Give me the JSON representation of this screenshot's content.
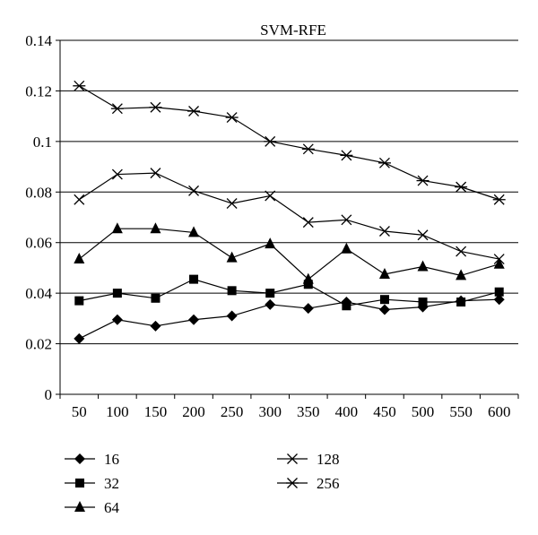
{
  "chart_data": {
    "type": "line",
    "title": "SVM-RFE",
    "xlabel": "",
    "ylabel": "",
    "categories": [
      "50",
      "100",
      "150",
      "200",
      "250",
      "300",
      "350",
      "400",
      "450",
      "500",
      "550",
      "600"
    ],
    "yticks": [
      "0",
      "0.02",
      "0.04",
      "0.06",
      "0.08",
      "0.1",
      "0.12",
      "0.14"
    ],
    "ylim": [
      0,
      0.14
    ],
    "grid": "horizontal",
    "legend_position": "bottom",
    "series": [
      {
        "name": "16",
        "marker": "diamond",
        "values": [
          0.022,
          0.0295,
          0.027,
          0.0295,
          0.031,
          0.0355,
          0.034,
          0.0365,
          0.0335,
          0.0345,
          0.037,
          0.0375
        ]
      },
      {
        "name": "32",
        "marker": "square",
        "values": [
          0.037,
          0.04,
          0.038,
          0.0455,
          0.041,
          0.04,
          0.0435,
          0.035,
          0.0375,
          0.0365,
          0.0365,
          0.0405
        ]
      },
      {
        "name": "64",
        "marker": "triangle",
        "values": [
          0.0535,
          0.0655,
          0.0655,
          0.064,
          0.054,
          0.0595,
          0.0455,
          0.0575,
          0.0475,
          0.0505,
          0.047,
          0.0515
        ]
      },
      {
        "name": "128",
        "marker": "x",
        "values": [
          0.077,
          0.087,
          0.0875,
          0.0805,
          0.0755,
          0.0785,
          0.068,
          0.069,
          0.0645,
          0.063,
          0.0565,
          0.0535
        ]
      },
      {
        "name": "256",
        "marker": "star",
        "values": [
          0.122,
          0.113,
          0.1135,
          0.112,
          0.1095,
          0.1,
          0.097,
          0.0945,
          0.0915,
          0.0845,
          0.082,
          0.077
        ]
      }
    ]
  }
}
